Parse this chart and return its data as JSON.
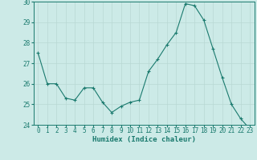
{
  "x": [
    0,
    1,
    2,
    3,
    4,
    5,
    6,
    7,
    8,
    9,
    10,
    11,
    12,
    13,
    14,
    15,
    16,
    17,
    18,
    19,
    20,
    21,
    22,
    23
  ],
  "y": [
    27.5,
    26.0,
    26.0,
    25.3,
    25.2,
    25.8,
    25.8,
    25.1,
    24.6,
    24.9,
    25.1,
    25.2,
    26.6,
    27.2,
    27.9,
    28.5,
    29.9,
    29.8,
    29.1,
    27.7,
    26.3,
    25.0,
    24.3,
    23.8
  ],
  "line_color": "#1a7a6e",
  "marker_color": "#1a7a6e",
  "bg_color": "#cceae7",
  "grid_color": "#b8d8d4",
  "axis_label_color": "#1a7a6e",
  "tick_color": "#1a7a6e",
  "spine_color": "#1a7a6e",
  "xlabel": "Humidex (Indice chaleur)",
  "ylim": [
    24,
    30
  ],
  "xlim": [
    -0.5,
    23.5
  ],
  "yticks": [
    24,
    25,
    26,
    27,
    28,
    29,
    30
  ],
  "xticks": [
    0,
    1,
    2,
    3,
    4,
    5,
    6,
    7,
    8,
    9,
    10,
    11,
    12,
    13,
    14,
    15,
    16,
    17,
    18,
    19,
    20,
    21,
    22,
    23
  ],
  "xtick_labels": [
    "0",
    "1",
    "2",
    "3",
    "4",
    "5",
    "6",
    "7",
    "8",
    "9",
    "10",
    "11",
    "12",
    "13",
    "14",
    "15",
    "16",
    "17",
    "18",
    "19",
    "20",
    "21",
    "22",
    "23"
  ],
  "tick_fontsize": 5.5,
  "xlabel_fontsize": 6.5
}
